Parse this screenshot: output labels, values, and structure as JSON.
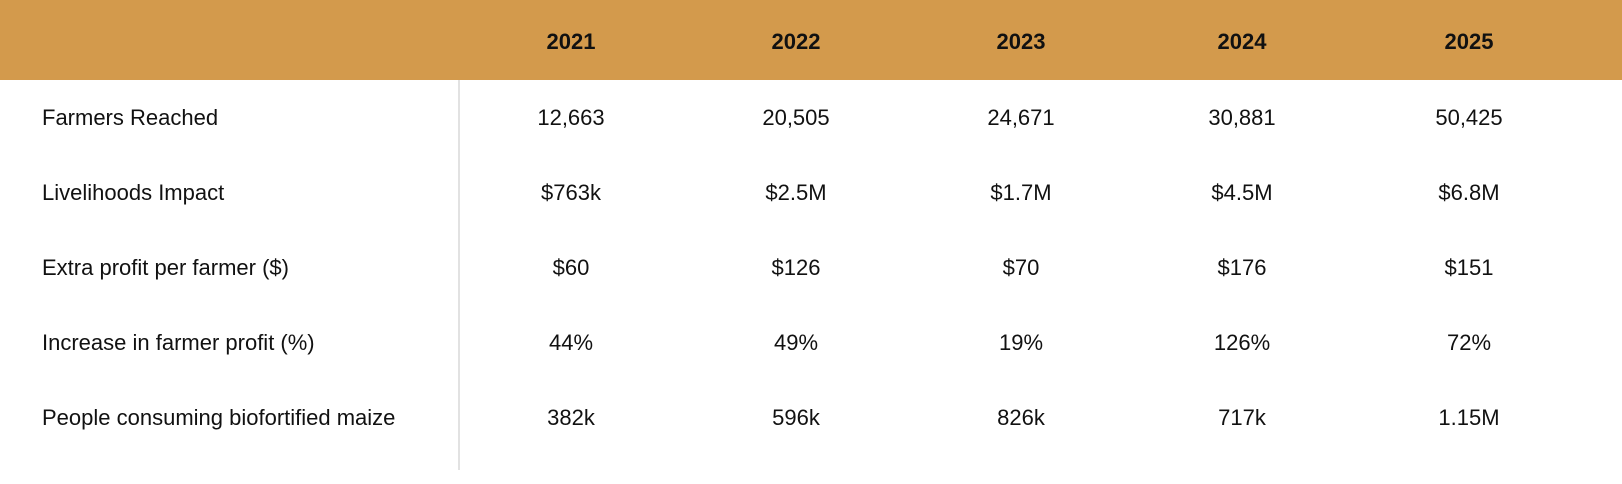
{
  "colors": {
    "header_bg": "#D39A4C",
    "divider": "#e2e2e2"
  },
  "table": {
    "columns": [
      "2021",
      "2022",
      "2023",
      "2024",
      "2025"
    ],
    "rows": [
      {
        "label": "Farmers Reached",
        "values": [
          "12,663",
          "20,505",
          "24,671",
          "30,881",
          "50,425"
        ]
      },
      {
        "label": "Livelihoods Impact",
        "values": [
          "$763k",
          "$2.5M",
          "$1.7M",
          "$4.5M",
          "$6.8M"
        ]
      },
      {
        "label": "Extra profit per farmer ($)",
        "values": [
          "$60",
          "$126",
          "$70",
          "$176",
          "$151"
        ]
      },
      {
        "label": "Increase in farmer profit (%)",
        "values": [
          "44%",
          "49%",
          "19%",
          "126%",
          "72%"
        ]
      },
      {
        "label": "People consuming biofortified maize",
        "values": [
          "382k",
          "596k",
          "826k",
          "717k",
          "1.15M"
        ]
      }
    ]
  }
}
